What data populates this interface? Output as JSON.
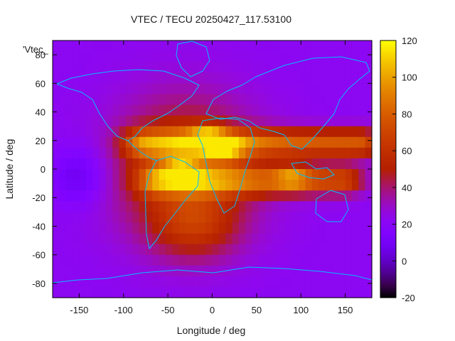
{
  "chart_data": {
    "type": "heatmap",
    "title": "VTEC / TECU 20250427_117.53100",
    "xlabel": "Longitude / deg",
    "ylabel": "Latitude / deg",
    "series_label": "'Vtec_",
    "xlim": [
      -180,
      180
    ],
    "ylim": [
      -90,
      90
    ],
    "x_ticks": [
      -150,
      -100,
      -50,
      0,
      50,
      100,
      150
    ],
    "y_ticks": [
      -80,
      -60,
      -40,
      -20,
      0,
      20,
      40,
      60,
      80
    ],
    "colorbar": {
      "range": [
        -20,
        120
      ],
      "ticks": [
        -20,
        0,
        20,
        40,
        60,
        80,
        100,
        120
      ],
      "palette": "gnuplot-rgbformulae-7-5-15"
    },
    "features": {
      "background_level": 22,
      "trough": {
        "lon": -150,
        "lat": -5,
        "value": 5
      },
      "ridges": [
        {
          "lon_range": [
            -75,
            165
          ],
          "lat": 18,
          "peak": 100
        },
        {
          "lon_range": [
            -60,
            145
          ],
          "lat": -8,
          "peak": 95
        }
      ],
      "southern_lobe": {
        "lon": -20,
        "lat": -40,
        "value": 55
      },
      "hotspots": [
        {
          "lon": -5,
          "lat": 22,
          "value": 112
        },
        {
          "lon": 15,
          "lat": 14,
          "value": 110
        },
        {
          "lon": -35,
          "lat": 0,
          "value": 108
        },
        {
          "lon": 90,
          "lat": -6,
          "value": 105
        }
      ]
    }
  }
}
